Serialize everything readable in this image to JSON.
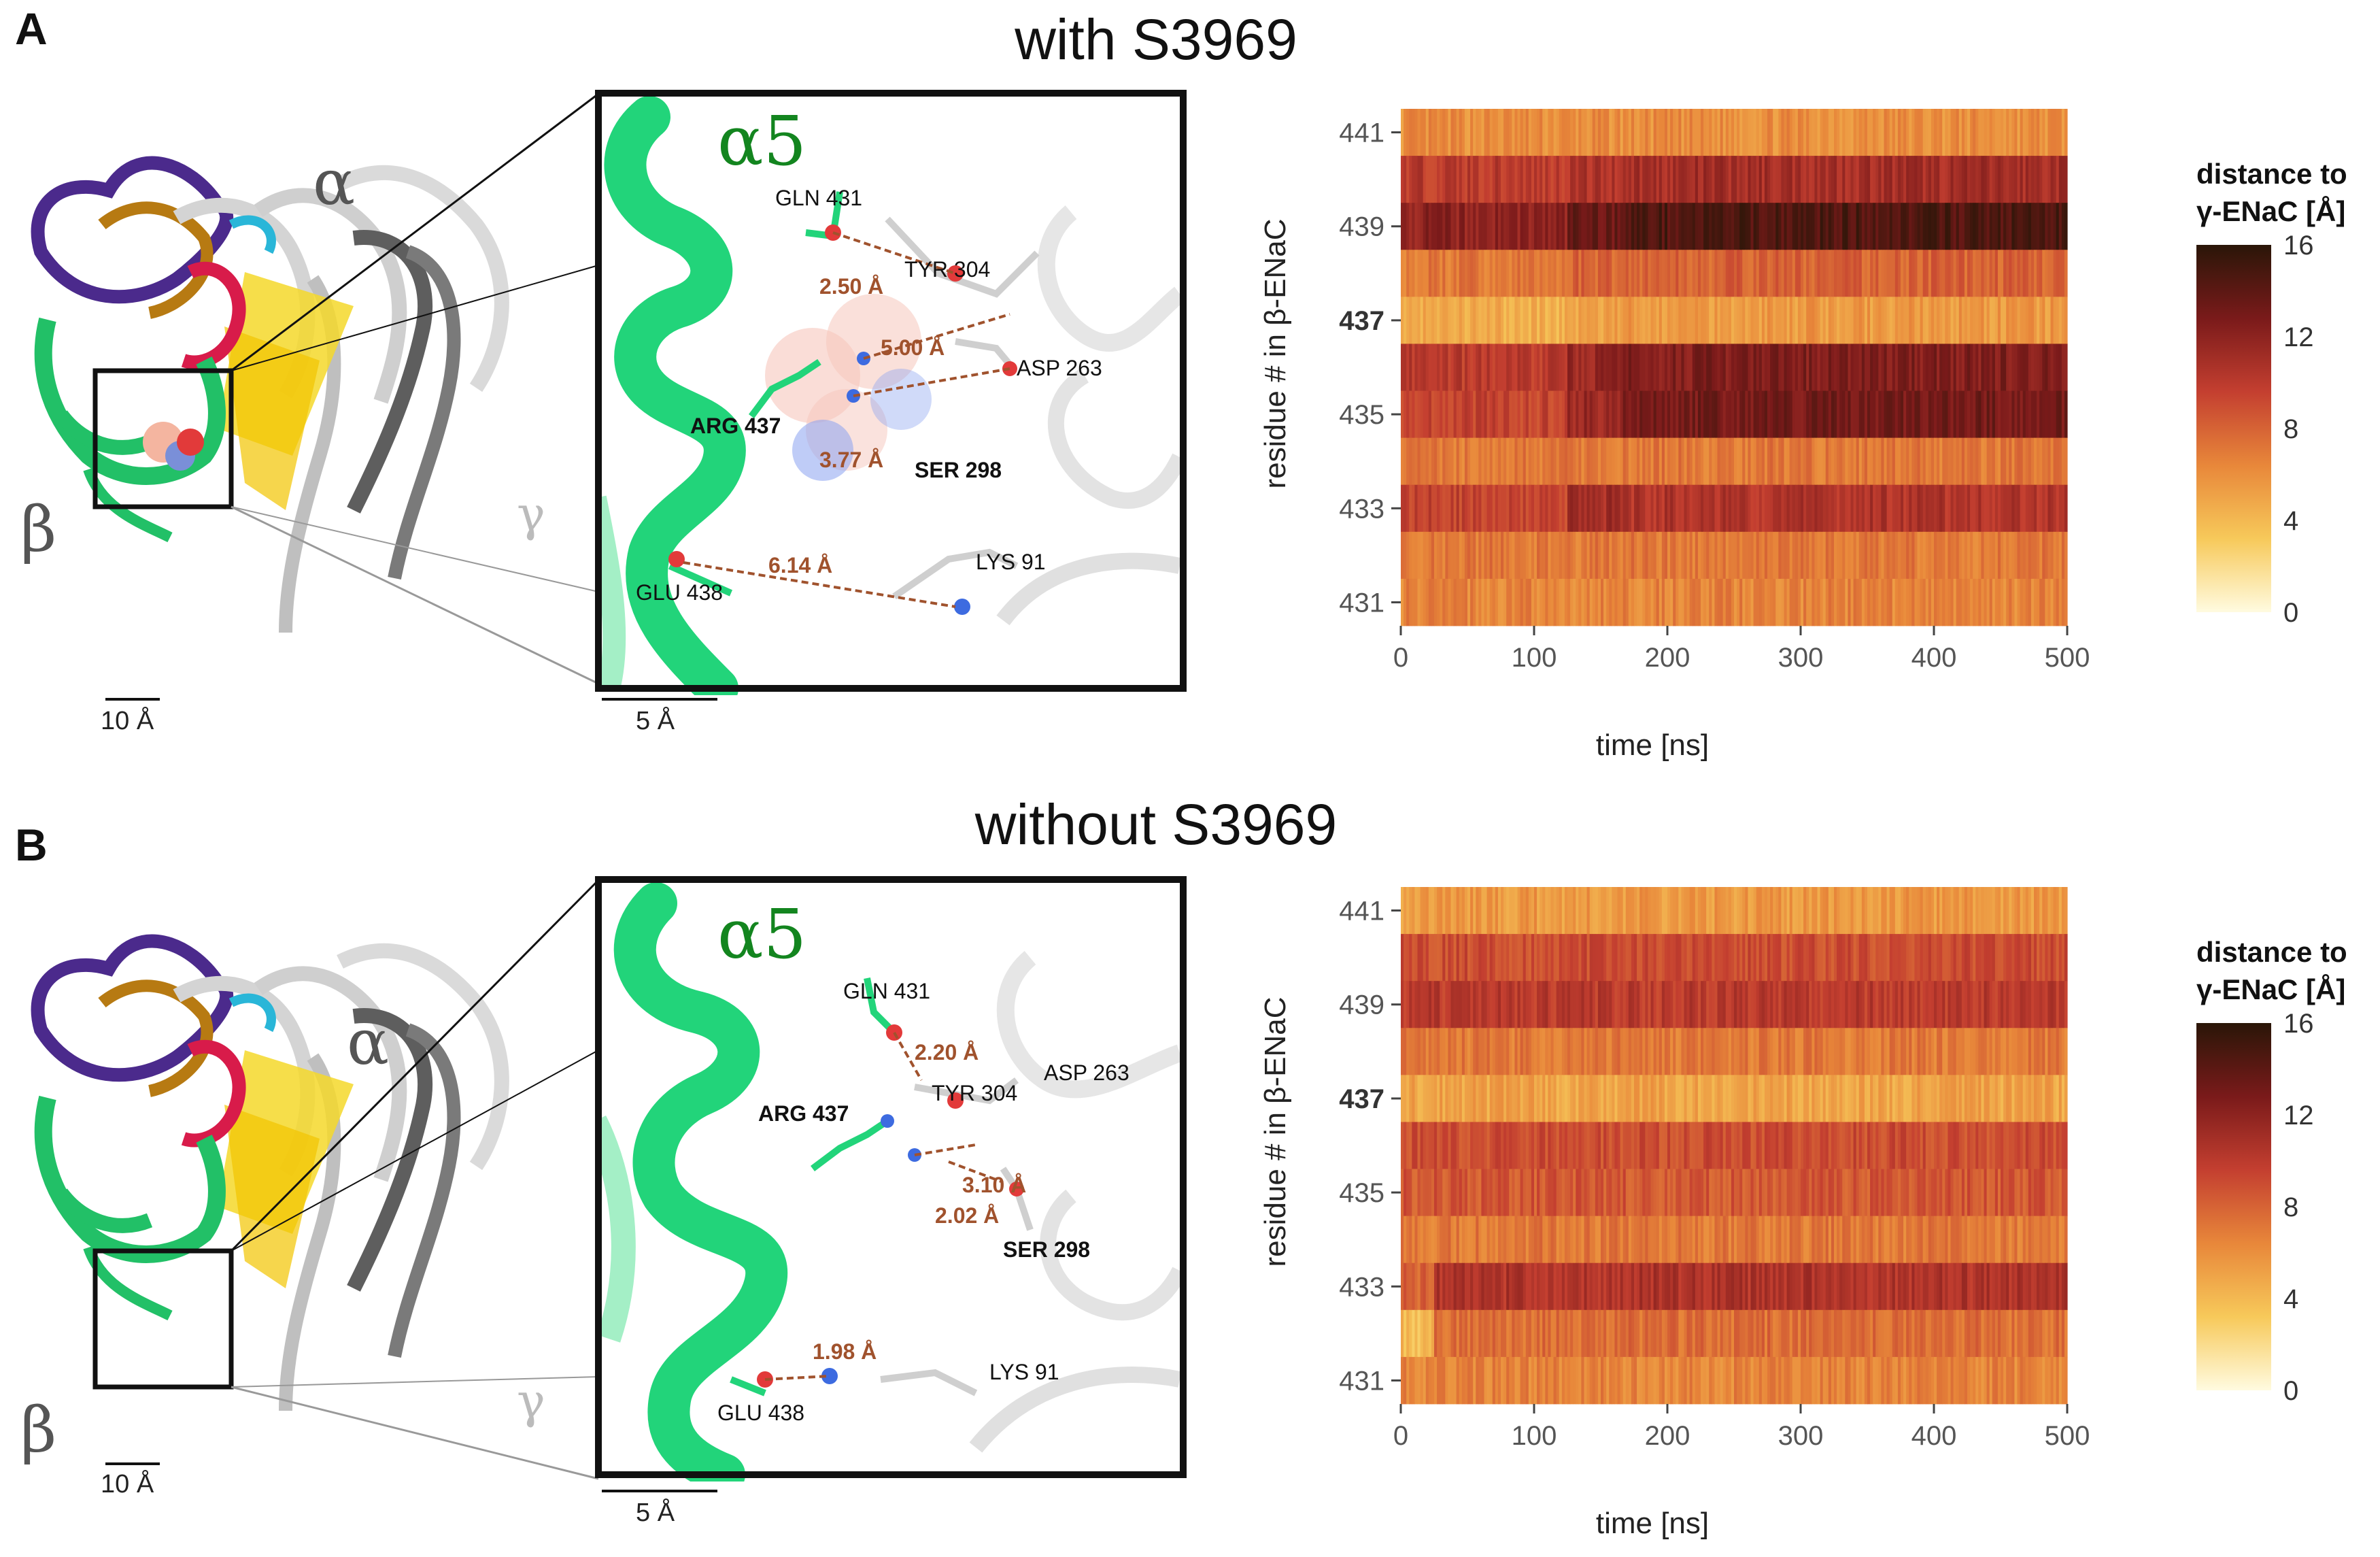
{
  "panels": [
    {
      "label": "A",
      "title": "with S3969",
      "overview": {
        "greek": {
          "alpha": "α",
          "beta": "β",
          "gamma": "γ"
        },
        "scale": "10 Å"
      },
      "closeup": {
        "helix": "α5",
        "scale": "5 Å",
        "residues": {
          "gln431": "GLN 431",
          "tyr304": "TYR 304",
          "asp263": "ASP 263",
          "arg437": "ARG 437",
          "ser298": "SER 298",
          "lys91": "LYS 91",
          "glu438": "GLU 438"
        },
        "distances": {
          "d1": "2.50 Å",
          "d2": "5.00 Å",
          "d3": "3.77 Å",
          "d4": "6.14 Å"
        }
      },
      "heatmap_labels": {
        "yaxis": "residue # in β-ENaC",
        "xaxis": "time [ns]",
        "yticks": [
          "441",
          "439",
          "437",
          "435",
          "433",
          "431"
        ],
        "xticks": [
          "0",
          "100",
          "200",
          "300",
          "400",
          "500"
        ],
        "legend_title_1": "distance to",
        "legend_title_2": "γ-ENaC [Å]",
        "legend_ticks": [
          "16",
          "12",
          "8",
          "4",
          "0"
        ]
      }
    },
    {
      "label": "B",
      "title": "without S3969",
      "overview": {
        "greek": {
          "alpha": "α",
          "beta": "β",
          "gamma": "γ"
        },
        "scale": "10 Å"
      },
      "closeup": {
        "helix": "α5",
        "scale": "5 Å",
        "residues": {
          "gln431": "GLN 431",
          "tyr304": "TYR 304",
          "asp263": "ASP 263",
          "arg437": "ARG 437",
          "ser298": "SER 298",
          "lys91": "LYS 91",
          "glu438": "GLU 438"
        },
        "distances": {
          "d1": "2.20 Å",
          "d2": "3.10 Å",
          "d3": "2.02 Å",
          "d4": "1.98 Å"
        }
      },
      "heatmap_labels": {
        "yaxis": "residue # in β-ENaC",
        "xaxis": "time [ns]",
        "yticks": [
          "441",
          "439",
          "437",
          "435",
          "433",
          "431"
        ],
        "xticks": [
          "0",
          "100",
          "200",
          "300",
          "400",
          "500"
        ],
        "legend_title_1": "distance to",
        "legend_title_2": "γ-ENaC [Å]",
        "legend_ticks": [
          "16",
          "12",
          "8",
          "4",
          "0"
        ]
      }
    }
  ],
  "chart_data": [
    {
      "type": "heatmap",
      "panel": "A",
      "xlabel": "time [ns]",
      "ylabel": "residue # in β-ENaC",
      "xlim": [
        0,
        500
      ],
      "colorbar": {
        "label": "distance to γ-ENaC [Å]",
        "range": [
          0,
          16
        ],
        "colors": [
          "#fffbe0",
          "#f7c95a",
          "#e8873a",
          "#c43f30",
          "#7a1a1a",
          "#2a1608"
        ]
      },
      "residues": [
        441,
        440,
        439,
        438,
        437,
        436,
        435,
        434,
        433,
        432,
        431
      ],
      "time_segments": [
        0,
        125,
        165,
        500
      ],
      "distance": [
        [
          6,
          6,
          6
        ],
        [
          10,
          10.5,
          11
        ],
        [
          12,
          13.5,
          14.5
        ],
        [
          7,
          8,
          8
        ],
        [
          4.5,
          5,
          5.5
        ],
        [
          10,
          11.5,
          12.5
        ],
        [
          9.5,
          11.5,
          13
        ],
        [
          7,
          7,
          7
        ],
        [
          9.5,
          11,
          10.5
        ],
        [
          7,
          7,
          7
        ],
        [
          6.5,
          6.5,
          6.5
        ]
      ]
    },
    {
      "type": "heatmap",
      "panel": "B",
      "xlabel": "time [ns]",
      "ylabel": "residue # in β-ENaC",
      "xlim": [
        0,
        500
      ],
      "colorbar": {
        "label": "distance to γ-ENaC [Å]",
        "range": [
          0,
          16
        ],
        "colors": [
          "#fffbe0",
          "#f7c95a",
          "#e8873a",
          "#c43f30",
          "#7a1a1a",
          "#2a1608"
        ]
      },
      "residues": [
        441,
        440,
        439,
        438,
        437,
        436,
        435,
        434,
        433,
        432,
        431
      ],
      "time_segments": [
        0,
        25,
        500
      ],
      "distance": [
        [
          5.5,
          5.5
        ],
        [
          9,
          9
        ],
        [
          10,
          10
        ],
        [
          7,
          7
        ],
        [
          5,
          5
        ],
        [
          9,
          9
        ],
        [
          8.5,
          8.5
        ],
        [
          7,
          7
        ],
        [
          8,
          10.5
        ],
        [
          4,
          7.5
        ],
        [
          6.5,
          6.5
        ]
      ]
    }
  ]
}
